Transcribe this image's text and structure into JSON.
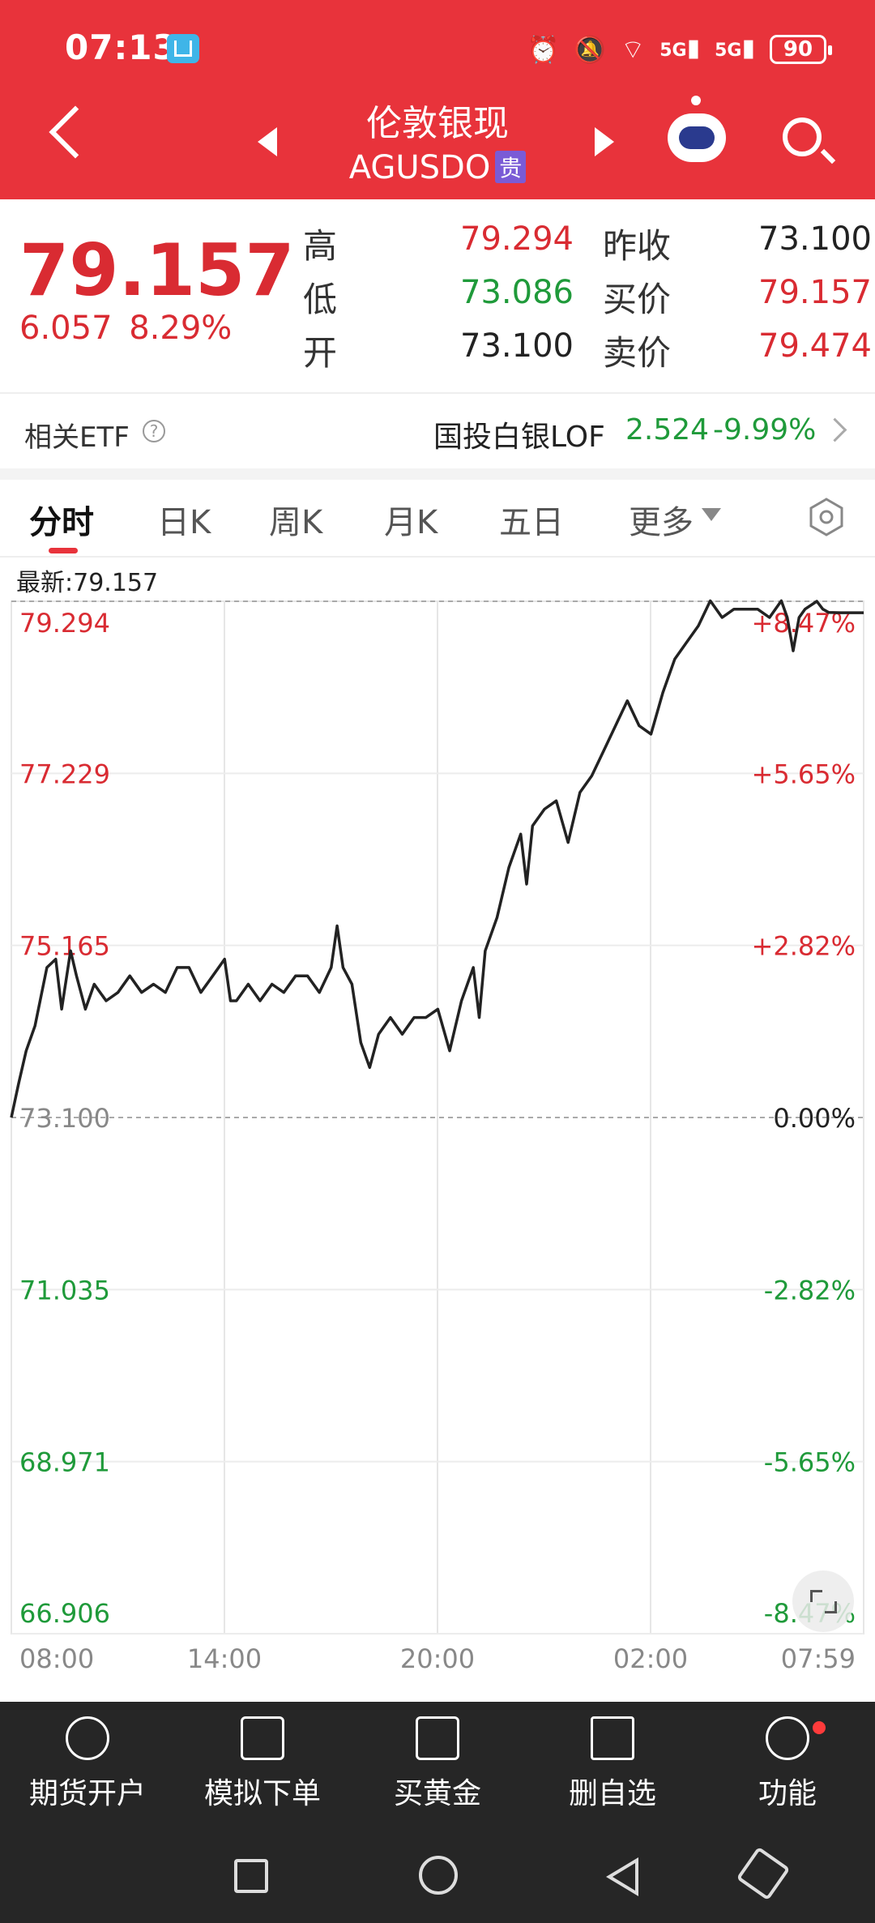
{
  "status_bar": {
    "time": "07:13",
    "network1": "5G",
    "network2": "5G",
    "battery": "90"
  },
  "header": {
    "title": "伦敦银现",
    "subtitle": "AGUSDO",
    "badge": "贵"
  },
  "quote": {
    "price": "79.157",
    "change": "6.057",
    "change_pct": "8.29%",
    "high_label": "高",
    "high": "79.294",
    "low_label": "低",
    "low": "73.086",
    "open_label": "开",
    "open": "73.100",
    "prev_close_label": "昨收",
    "prev_close": "73.100",
    "bid_label": "买价",
    "bid": "79.157",
    "ask_label": "卖价",
    "ask": "79.474"
  },
  "etf": {
    "label": "相关ETF",
    "name": "国投白银LOF",
    "price": "2.524",
    "change": "-9.99%"
  },
  "tabs": [
    {
      "label": "分时"
    },
    {
      "label": "日K"
    },
    {
      "label": "周K"
    },
    {
      "label": "月K"
    },
    {
      "label": "五日"
    },
    {
      "label": "更多"
    }
  ],
  "chart": {
    "latest_label": "最新:79.157"
  },
  "chart_data": {
    "type": "line",
    "prev_close": 73.1,
    "ylim": [
      66.906,
      79.294
    ],
    "y_ticks": [
      {
        "price": "79.294",
        "pct": "+8.47%",
        "dir": "up"
      },
      {
        "price": "77.229",
        "pct": "+5.65%",
        "dir": "up"
      },
      {
        "price": "75.165",
        "pct": "+2.82%",
        "dir": "up"
      },
      {
        "price": "73.100",
        "pct": "0.00%",
        "dir": "flat"
      },
      {
        "price": "71.035",
        "pct": "-2.82%",
        "dir": "down"
      },
      {
        "price": "68.971",
        "pct": "-5.65%",
        "dir": "down"
      },
      {
        "price": "66.906",
        "pct": "-8.47%",
        "dir": "down"
      }
    ],
    "x_ticks": [
      "08:00",
      "14:00",
      "20:00",
      "02:00",
      "07:59"
    ],
    "x_range_minutes": [
      0,
      1439
    ],
    "series": [
      {
        "x": [
          0,
          12,
          25,
          40,
          60,
          75,
          85,
          100,
          110,
          125,
          140,
          160,
          180,
          200,
          220,
          240,
          260,
          280,
          300,
          320,
          340,
          360,
          370,
          380,
          400,
          420,
          440,
          460,
          480,
          500,
          520,
          540,
          550,
          560,
          575,
          590,
          605,
          620,
          640,
          660,
          680,
          700,
          720,
          740,
          760,
          780,
          790,
          800,
          820,
          840,
          860,
          870,
          880,
          900,
          920,
          940,
          960,
          980,
          1000,
          1020,
          1040,
          1060,
          1080,
          1100,
          1120,
          1140,
          1160,
          1180,
          1200,
          1220,
          1240,
          1260,
          1280,
          1300,
          1310,
          1320,
          1330,
          1340,
          1360,
          1370,
          1380,
          1400,
          1420,
          1439
        ],
        "y": [
          73.1,
          73.5,
          73.9,
          74.2,
          74.9,
          75.0,
          74.4,
          75.1,
          74.8,
          74.4,
          74.7,
          74.5,
          74.6,
          74.8,
          74.6,
          74.7,
          74.6,
          74.9,
          74.9,
          74.6,
          74.8,
          75.0,
          74.5,
          74.5,
          74.7,
          74.5,
          74.7,
          74.6,
          74.8,
          74.8,
          74.6,
          74.9,
          75.4,
          74.9,
          74.7,
          74.0,
          73.7,
          74.1,
          74.3,
          74.1,
          74.3,
          74.3,
          74.4,
          73.9,
          74.5,
          74.9,
          74.3,
          75.1,
          75.5,
          76.1,
          76.5,
          75.9,
          76.6,
          76.8,
          76.9,
          76.4,
          77.0,
          77.2,
          77.5,
          77.8,
          78.1,
          77.8,
          77.7,
          78.2,
          78.6,
          78.8,
          79.0,
          79.3,
          79.1,
          79.2,
          79.2,
          79.2,
          79.1,
          79.3,
          79.1,
          78.7,
          79.1,
          79.2,
          79.294,
          79.2,
          79.16,
          79.157,
          79.157,
          79.157
        ]
      }
    ]
  },
  "bottom_bar": {
    "items": [
      {
        "label": "期货开户",
        "icon": "futures-account-icon"
      },
      {
        "label": "模拟下单",
        "icon": "simulated-order-icon"
      },
      {
        "label": "买黄金",
        "icon": "buy-gold-icon"
      },
      {
        "label": "删自选",
        "icon": "remove-watchlist-icon"
      },
      {
        "label": "功能",
        "icon": "functions-icon"
      }
    ]
  },
  "colors": {
    "accent": "#e8333b",
    "up": "#d92b32",
    "down": "#1f9a3a",
    "line": "#222222"
  }
}
